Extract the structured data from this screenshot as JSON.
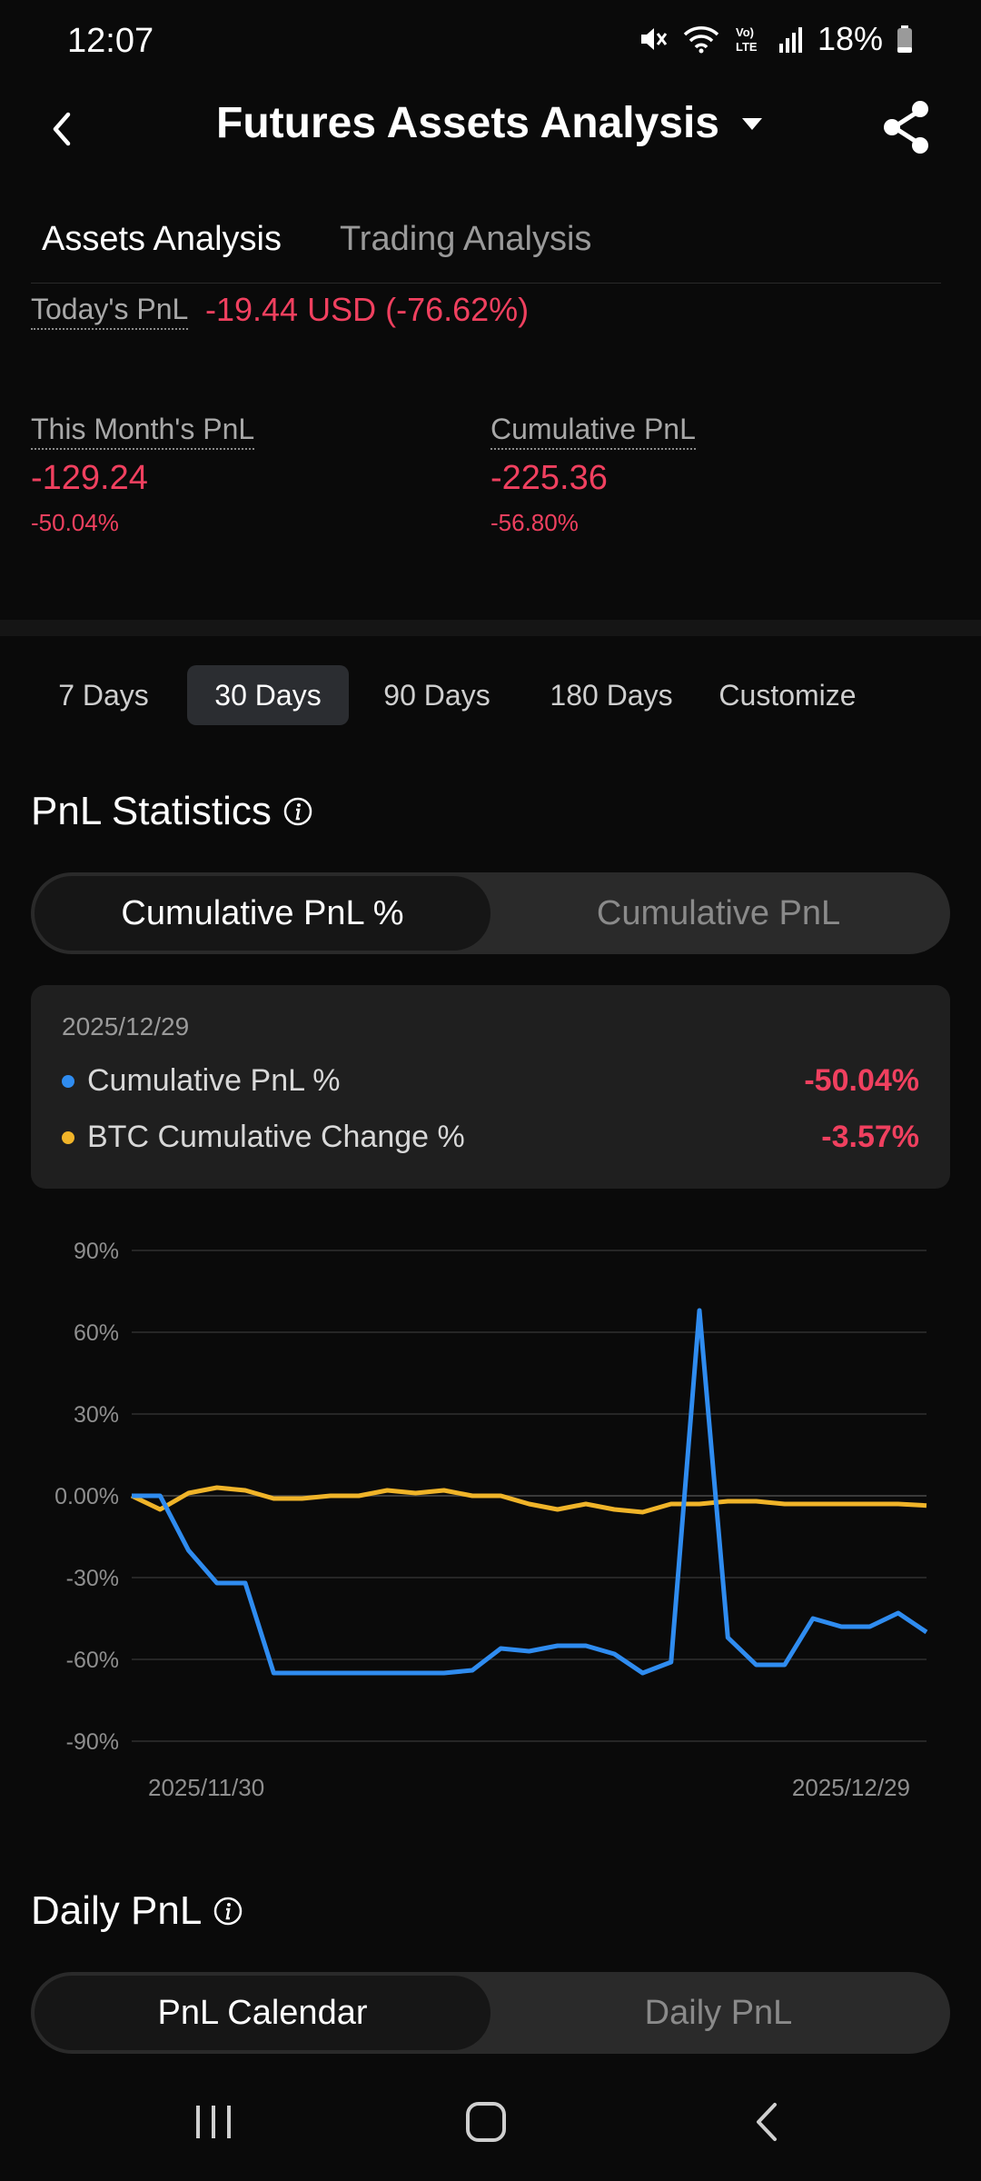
{
  "status_bar": {
    "time": "12:07",
    "battery": "18%",
    "icons": [
      "mute-icon",
      "wifi-icon",
      "volte-icon",
      "signal-icon",
      "battery-icon"
    ]
  },
  "header": {
    "title": "Futures Assets Analysis",
    "back_icon": "chevron-left-icon",
    "dropdown_icon": "caret-down-icon",
    "share_icon": "share-icon"
  },
  "tabs": [
    {
      "label": "Assets Analysis",
      "active": true
    },
    {
      "label": "Trading Analysis",
      "active": false
    }
  ],
  "summary": {
    "today_label": "Today's PnL",
    "today_value": "-19.44 USD (-76.62%)",
    "month_label": "This Month's PnL",
    "month_value": "-129.24",
    "month_pct": "-50.04%",
    "cum_label": "Cumulative PnL",
    "cum_value": "-225.36",
    "cum_pct": "-56.80%"
  },
  "ranges": [
    {
      "label": "7 Days",
      "active": false
    },
    {
      "label": "30 Days",
      "active": true
    },
    {
      "label": "90 Days",
      "active": false
    },
    {
      "label": "180 Days",
      "active": false
    },
    {
      "label": "Customize",
      "active": false
    }
  ],
  "pnl_stats": {
    "title": "PnL Statistics",
    "info_icon": "info-icon",
    "segment_active": "Cumulative PnL %",
    "segment_inactive": "Cumulative PnL"
  },
  "tooltip": {
    "date": "2025/12/29",
    "rows": [
      {
        "label": "Cumulative PnL %",
        "value": "-50.04%",
        "color": "#2f8cf0"
      },
      {
        "label": "BTC Cumulative Change %",
        "value": "-3.57%",
        "color": "#f0b429"
      }
    ]
  },
  "chart_data": {
    "type": "line",
    "x_start_label": "2025/11/30",
    "x_end_label": "2025/12/29",
    "yticks": [
      "90%",
      "60%",
      "30%",
      "0.00%",
      "-30%",
      "-60%",
      "-90%"
    ],
    "ylim": [
      -90,
      90
    ],
    "grid": true,
    "series": [
      {
        "name": "Cumulative PnL %",
        "color": "#2f8cf0",
        "values": [
          0,
          0,
          -20,
          -32,
          -32,
          -65,
          -65,
          -65,
          -65,
          -65,
          -65,
          -65,
          -64,
          -56,
          -57,
          -55,
          -55,
          -58,
          -65,
          -61,
          68,
          -52,
          -62,
          -62,
          -45,
          -48,
          -48,
          -43,
          -50
        ]
      },
      {
        "name": "BTC Cumulative Change %",
        "color": "#f0b429",
        "values": [
          0,
          -5,
          1,
          3,
          2,
          -1,
          -1,
          0,
          0,
          2,
          1,
          2,
          0,
          0,
          -3,
          -5,
          -3,
          -5,
          -6,
          -3,
          -3,
          -2,
          -2,
          -3,
          -3,
          -3,
          -3,
          -3,
          -3.57
        ]
      }
    ]
  },
  "daily_pnl": {
    "title": "Daily PnL",
    "info_icon": "info-icon",
    "segment_active": "PnL Calendar",
    "segment_inactive": "Daily PnL"
  },
  "nav_bar": {
    "items": [
      "recent-apps-icon",
      "home-icon",
      "back-icon"
    ]
  }
}
